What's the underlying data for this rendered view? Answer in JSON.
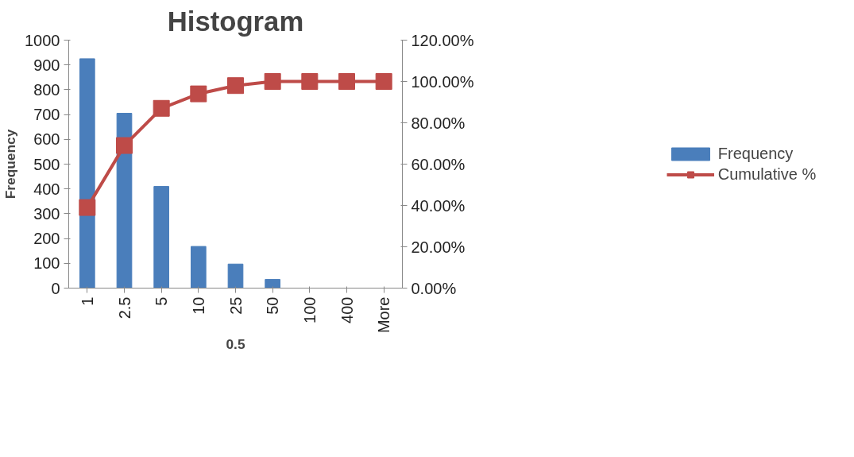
{
  "chart_data": {
    "type": "bar",
    "title": "Histogram",
    "xlabel": "0.5",
    "ylabel": "Frequency",
    "categories": [
      "1",
      "2.5",
      "5",
      "10",
      "25",
      "50",
      "100",
      "400",
      "More"
    ],
    "series": [
      {
        "name": "Frequency",
        "color": "#4a7ebb",
        "values": [
          925,
          705,
          410,
          168,
          97,
          35,
          0,
          0,
          0
        ]
      },
      {
        "name": "Cumulative %",
        "type": "line",
        "axis": "y2",
        "color": "#be4b48",
        "marker": "square",
        "values": [
          39,
          69,
          87,
          94,
          98,
          100,
          100,
          100,
          100
        ]
      }
    ],
    "ylim": [
      0,
      1000
    ],
    "yticks": [
      0,
      100,
      200,
      300,
      400,
      500,
      600,
      700,
      800,
      900,
      1000
    ],
    "y2lim": [
      0,
      120
    ],
    "y2ticks": [
      {
        "value": 0,
        "label": "0.00%"
      },
      {
        "value": 20,
        "label": "20.00%"
      },
      {
        "value": 40,
        "label": "40.00%"
      },
      {
        "value": 60,
        "label": "60.00%"
      },
      {
        "value": 80,
        "label": "80.00%"
      },
      {
        "value": 100,
        "label": "100.00%"
      },
      {
        "value": 120,
        "label": "120.00%"
      }
    ],
    "grid": false,
    "legend": "right"
  }
}
